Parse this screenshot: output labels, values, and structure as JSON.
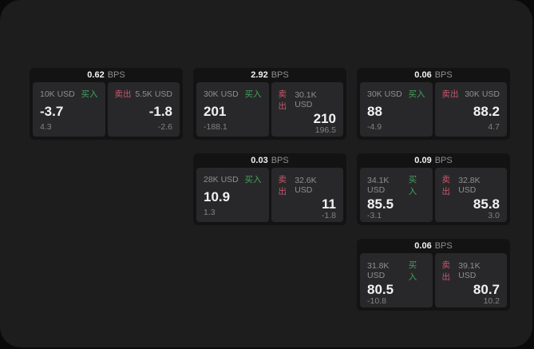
{
  "labels": {
    "bps_unit": "BPS",
    "buy": "买入",
    "sell": "卖出"
  },
  "colors": {
    "background_outer": "#0a0a0a",
    "background_screen": "#1d1d1e",
    "card_background": "#131313",
    "pane_background": "#28282a",
    "text_primary": "#f2f2f3",
    "text_secondary": "#8f8f8f",
    "buy_green": "#43a15c",
    "sell_red": "#c9566b"
  },
  "cards": [
    {
      "col": 1,
      "row": 1,
      "bps": "0.62",
      "buy": {
        "size": "10K USD",
        "main": "-3.7",
        "sub": "4.3"
      },
      "sell": {
        "size": "5.5K USD",
        "main": "-1.8",
        "sub": "-2.6"
      }
    },
    {
      "col": 2,
      "row": 1,
      "bps": "2.92",
      "buy": {
        "size": "30K USD",
        "main": "201",
        "sub": "-188.1"
      },
      "sell": {
        "size": "30.1K USD",
        "main": "210",
        "sub": "196.5"
      }
    },
    {
      "col": 3,
      "row": 1,
      "bps": "0.06",
      "buy": {
        "size": "30K USD",
        "main": "88",
        "sub": "-4.9"
      },
      "sell": {
        "size": "30K USD",
        "main": "88.2",
        "sub": "4.7"
      }
    },
    {
      "col": 2,
      "row": 2,
      "bps": "0.03",
      "buy": {
        "size": "28K USD",
        "main": "10.9",
        "sub": "1.3"
      },
      "sell": {
        "size": "32.6K USD",
        "main": "11",
        "sub": "-1.8"
      }
    },
    {
      "col": 3,
      "row": 2,
      "bps": "0.09",
      "buy": {
        "size": "34.1K USD",
        "main": "85.5",
        "sub": "-3.1"
      },
      "sell": {
        "size": "32.8K USD",
        "main": "85.8",
        "sub": "3.0"
      }
    },
    {
      "col": 3,
      "row": 3,
      "bps": "0.06",
      "buy": {
        "size": "31.8K USD",
        "main": "80.5",
        "sub": "-10.8"
      },
      "sell": {
        "size": "39.1K USD",
        "main": "80.7",
        "sub": "10.2"
      }
    }
  ]
}
